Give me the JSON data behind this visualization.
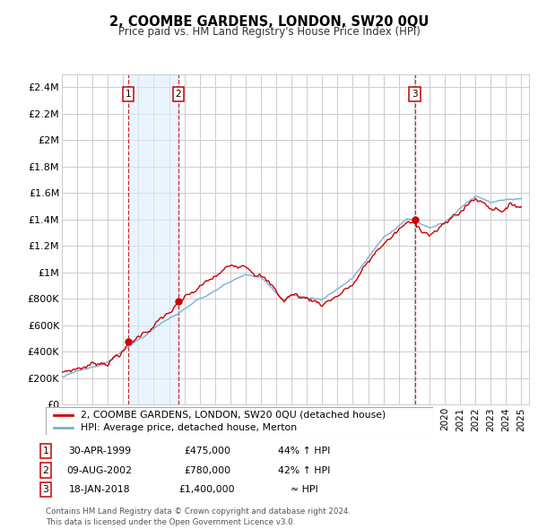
{
  "title": "2, COOMBE GARDENS, LONDON, SW20 0QU",
  "subtitle": "Price paid vs. HM Land Registry's House Price Index (HPI)",
  "legend_line1": "2, COOMBE GARDENS, LONDON, SW20 0QU (detached house)",
  "legend_line2": "HPI: Average price, detached house, Merton",
  "transactions": [
    {
      "num": 1,
      "date": "30-APR-1999",
      "price": 475000,
      "pct": "44% ↑ HPI",
      "year": 1999.33
    },
    {
      "num": 2,
      "date": "09-AUG-2002",
      "price": 780000,
      "pct": "42% ↑ HPI",
      "year": 2002.61
    },
    {
      "num": 3,
      "date": "18-JAN-2018",
      "price": 1400000,
      "pct": "≈ HPI",
      "year": 2018.05
    }
  ],
  "footer": "Contains HM Land Registry data © Crown copyright and database right 2024.\nThis data is licensed under the Open Government Licence v3.0.",
  "red_color": "#cc0000",
  "blue_color": "#7aafd4",
  "shade_color": "#ddeeff",
  "grid_color": "#cccccc",
  "bg_color": "#ffffff",
  "yticks": [
    0,
    200000,
    400000,
    600000,
    800000,
    1000000,
    1200000,
    1400000,
    1600000,
    1800000,
    2000000,
    2200000,
    2400000
  ],
  "ytick_labels": [
    "£0",
    "£200K",
    "£400K",
    "£600K",
    "£800K",
    "£1M",
    "£1.2M",
    "£1.4M",
    "£1.6M",
    "£1.8M",
    "£2M",
    "£2.2M",
    "£2.4M"
  ],
  "xlim_start": 1995.0,
  "xlim_end": 2025.5,
  "ylim_max": 2500000
}
